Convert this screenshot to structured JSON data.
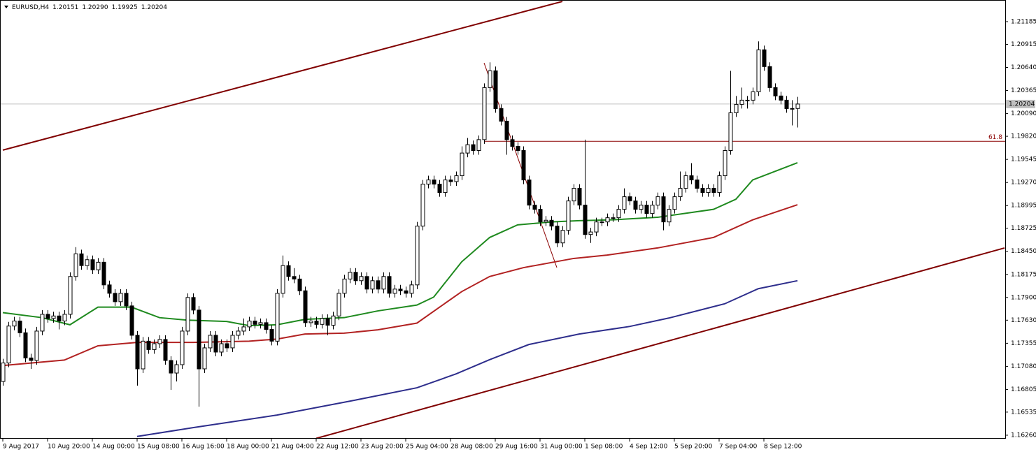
{
  "chart_data": {
    "type": "candlestick",
    "symbol": "EURUSD,H4",
    "header_ohlc": [
      "1.20151",
      "1.20290",
      "1.19925",
      "1.20204"
    ],
    "candle_colors": {
      "up": "#ffffff",
      "down": "#000000"
    },
    "candles": [
      [
        1.169,
        1.1717,
        1.1685,
        1.1712
      ],
      [
        1.1712,
        1.1761,
        1.1707,
        1.1756
      ],
      [
        1.1756,
        1.1767,
        1.1751,
        1.1762
      ],
      [
        1.1762,
        1.1767,
        1.1743,
        1.1748
      ],
      [
        1.1748,
        1.1753,
        1.1713,
        1.1718
      ],
      [
        1.1718,
        1.1723,
        1.1705,
        1.1715
      ],
      [
        1.1715,
        1.1755,
        1.171,
        1.175
      ],
      [
        1.175,
        1.1775,
        1.1745,
        1.177
      ],
      [
        1.177,
        1.1775,
        1.176,
        1.1765
      ],
      [
        1.1765,
        1.1773,
        1.176,
        1.1768
      ],
      [
        1.1768,
        1.1773,
        1.1752,
        1.1762
      ],
      [
        1.1762,
        1.1775,
        1.1757,
        1.177
      ],
      [
        1.177,
        1.182,
        1.1765,
        1.1815
      ],
      [
        1.1815,
        1.185,
        1.181,
        1.1842
      ],
      [
        1.1842,
        1.1847,
        1.1823,
        1.1828
      ],
      [
        1.1828,
        1.184,
        1.1823,
        1.1835
      ],
      [
        1.1835,
        1.184,
        1.1818,
        1.1823
      ],
      [
        1.1823,
        1.1837,
        1.1818,
        1.1832
      ],
      [
        1.1832,
        1.1837,
        1.18,
        1.1805
      ],
      [
        1.1805,
        1.181,
        1.179,
        1.1795
      ],
      [
        1.1795,
        1.18,
        1.178,
        1.1785
      ],
      [
        1.1785,
        1.18,
        1.178,
        1.1795
      ],
      [
        1.1795,
        1.18,
        1.1775,
        1.178
      ],
      [
        1.178,
        1.1785,
        1.174,
        1.1745
      ],
      [
        1.1745,
        1.175,
        1.1685,
        1.1705
      ],
      [
        1.1705,
        1.1743,
        1.17,
        1.1738
      ],
      [
        1.1738,
        1.1743,
        1.1723,
        1.1728
      ],
      [
        1.1728,
        1.174,
        1.1723,
        1.1735
      ],
      [
        1.1735,
        1.1745,
        1.173,
        1.174
      ],
      [
        1.174,
        1.1745,
        1.171,
        1.1715
      ],
      [
        1.1715,
        1.172,
        1.168,
        1.17
      ],
      [
        1.17,
        1.1715,
        1.169,
        1.171
      ],
      [
        1.171,
        1.1755,
        1.1705,
        1.175
      ],
      [
        1.175,
        1.1795,
        1.1745,
        1.179
      ],
      [
        1.179,
        1.1795,
        1.177,
        1.1775
      ],
      [
        1.1775,
        1.178,
        1.166,
        1.1705
      ],
      [
        1.1705,
        1.1735,
        1.17,
        1.173
      ],
      [
        1.173,
        1.175,
        1.1725,
        1.1745
      ],
      [
        1.1745,
        1.175,
        1.172,
        1.1725
      ],
      [
        1.1725,
        1.174,
        1.172,
        1.1735
      ],
      [
        1.1735,
        1.174,
        1.1725,
        1.173
      ],
      [
        1.173,
        1.175,
        1.1725,
        1.1745
      ],
      [
        1.1745,
        1.1755,
        1.174,
        1.175
      ],
      [
        1.175,
        1.1765,
        1.1745,
        1.1755
      ],
      [
        1.1755,
        1.1767,
        1.175,
        1.1762
      ],
      [
        1.1762,
        1.1767,
        1.1753,
        1.1758
      ],
      [
        1.1758,
        1.1765,
        1.1753,
        1.176
      ],
      [
        1.176,
        1.1765,
        1.1747,
        1.1752
      ],
      [
        1.1752,
        1.1757,
        1.1733,
        1.1738
      ],
      [
        1.1738,
        1.18,
        1.1733,
        1.1795
      ],
      [
        1.1795,
        1.184,
        1.179,
        1.1828
      ],
      [
        1.1828,
        1.1833,
        1.181,
        1.1815
      ],
      [
        1.1815,
        1.1825,
        1.1807,
        1.1812
      ],
      [
        1.1812,
        1.1817,
        1.1793,
        1.1798
      ],
      [
        1.1798,
        1.1803,
        1.1755,
        1.176
      ],
      [
        1.176,
        1.1767,
        1.1755,
        1.1762
      ],
      [
        1.1762,
        1.1767,
        1.1753,
        1.1758
      ],
      [
        1.1758,
        1.177,
        1.1753,
        1.1765
      ],
      [
        1.1765,
        1.177,
        1.1745,
        1.1757
      ],
      [
        1.1757,
        1.1773,
        1.1752,
        1.1768
      ],
      [
        1.1768,
        1.18,
        1.1763,
        1.1795
      ],
      [
        1.1795,
        1.1817,
        1.179,
        1.1812
      ],
      [
        1.1812,
        1.1825,
        1.1807,
        1.182
      ],
      [
        1.182,
        1.1825,
        1.1805,
        1.181
      ],
      [
        1.181,
        1.182,
        1.1805,
        1.1815
      ],
      [
        1.1815,
        1.182,
        1.1795,
        1.18
      ],
      [
        1.18,
        1.1815,
        1.1795,
        1.181
      ],
      [
        1.181,
        1.1815,
        1.1795,
        1.18
      ],
      [
        1.18,
        1.182,
        1.1795,
        1.1815
      ],
      [
        1.1815,
        1.182,
        1.179,
        1.1795
      ],
      [
        1.1795,
        1.1805,
        1.179,
        1.18
      ],
      [
        1.18,
        1.1805,
        1.1793,
        1.1798
      ],
      [
        1.1798,
        1.1803,
        1.179,
        1.1795
      ],
      [
        1.1795,
        1.181,
        1.179,
        1.1805
      ],
      [
        1.1805,
        1.188,
        1.18,
        1.1875
      ],
      [
        1.1875,
        1.193,
        1.187,
        1.1925
      ],
      [
        1.1925,
        1.1935,
        1.192,
        1.193
      ],
      [
        1.193,
        1.1935,
        1.192,
        1.1925
      ],
      [
        1.1925,
        1.193,
        1.191,
        1.1915
      ],
      [
        1.1915,
        1.1935,
        1.191,
        1.193
      ],
      [
        1.193,
        1.1935,
        1.1923,
        1.1928
      ],
      [
        1.1928,
        1.194,
        1.1923,
        1.1935
      ],
      [
        1.1935,
        1.197,
        1.193,
        1.1962
      ],
      [
        1.1962,
        1.198,
        1.1957,
        1.1972
      ],
      [
        1.1972,
        1.1977,
        1.196,
        1.1965
      ],
      [
        1.1965,
        1.1983,
        1.196,
        1.1978
      ],
      [
        1.1978,
        1.2045,
        1.1973,
        1.204
      ],
      [
        1.204,
        1.207,
        1.2035,
        1.206
      ],
      [
        1.206,
        1.2065,
        1.201,
        1.2015
      ],
      [
        1.2015,
        1.202,
        1.1995,
        1.2
      ],
      [
        1.2,
        1.2005,
        1.196,
        1.1978
      ],
      [
        1.1978,
        1.1983,
        1.1965,
        1.197
      ],
      [
        1.197,
        1.1975,
        1.196,
        1.1965
      ],
      [
        1.1965,
        1.197,
        1.1925,
        1.193
      ],
      [
        1.193,
        1.1935,
        1.1895,
        1.19
      ],
      [
        1.19,
        1.1905,
        1.189,
        1.1895
      ],
      [
        1.1895,
        1.19,
        1.1875,
        1.188
      ],
      [
        1.188,
        1.1887,
        1.1875,
        1.1882
      ],
      [
        1.1882,
        1.1887,
        1.187,
        1.1875
      ],
      [
        1.1875,
        1.188,
        1.185,
        1.1855
      ],
      [
        1.1855,
        1.1875,
        1.185,
        1.187
      ],
      [
        1.187,
        1.191,
        1.1865,
        1.1905
      ],
      [
        1.1905,
        1.1925,
        1.19,
        1.192
      ],
      [
        1.192,
        1.1925,
        1.1895,
        1.19
      ],
      [
        1.19,
        1.1978,
        1.186,
        1.1865
      ],
      [
        1.1865,
        1.1873,
        1.1855,
        1.1868
      ],
      [
        1.1868,
        1.1885,
        1.1863,
        1.188
      ],
      [
        1.188,
        1.1885,
        1.1875,
        1.188
      ],
      [
        1.188,
        1.189,
        1.1875,
        1.1885
      ],
      [
        1.1885,
        1.189,
        1.188,
        1.1885
      ],
      [
        1.1885,
        1.19,
        1.188,
        1.1895
      ],
      [
        1.1895,
        1.192,
        1.189,
        1.191
      ],
      [
        1.191,
        1.1915,
        1.19,
        1.1905
      ],
      [
        1.1905,
        1.191,
        1.189,
        1.1895
      ],
      [
        1.1895,
        1.1905,
        1.189,
        1.19
      ],
      [
        1.19,
        1.1905,
        1.1885,
        1.189
      ],
      [
        1.189,
        1.1905,
        1.1885,
        1.19
      ],
      [
        1.19,
        1.1915,
        1.1895,
        1.191
      ],
      [
        1.191,
        1.1915,
        1.187,
        1.188
      ],
      [
        1.188,
        1.19,
        1.1875,
        1.1895
      ],
      [
        1.1895,
        1.1915,
        1.189,
        1.191
      ],
      [
        1.191,
        1.194,
        1.1905,
        1.192
      ],
      [
        1.192,
        1.194,
        1.1915,
        1.1935
      ],
      [
        1.1935,
        1.195,
        1.1925,
        1.193
      ],
      [
        1.193,
        1.1935,
        1.1915,
        1.192
      ],
      [
        1.192,
        1.1925,
        1.191,
        1.1915
      ],
      [
        1.1915,
        1.1925,
        1.191,
        1.192
      ],
      [
        1.192,
        1.1925,
        1.191,
        1.1915
      ],
      [
        1.1915,
        1.194,
        1.191,
        1.1935
      ],
      [
        1.1935,
        1.197,
        1.193,
        1.1965
      ],
      [
        1.1965,
        1.206,
        1.196,
        1.201
      ],
      [
        1.201,
        1.203,
        1.2005,
        1.202
      ],
      [
        1.202,
        1.204,
        1.2015,
        1.2025
      ],
      [
        1.2025,
        1.203,
        1.2015,
        1.2025
      ],
      [
        1.2025,
        1.204,
        1.202,
        1.2035
      ],
      [
        1.2035,
        1.2095,
        1.203,
        1.2085
      ],
      [
        1.2085,
        1.209,
        1.206,
        1.2065
      ],
      [
        1.2065,
        1.207,
        1.2035,
        1.204
      ],
      [
        1.204,
        1.2045,
        1.2025,
        1.203
      ],
      [
        1.203,
        1.2035,
        1.202,
        1.2025
      ],
      [
        1.2025,
        1.203,
        1.201,
        1.2015
      ],
      [
        1.2015,
        1.2025,
        1.1995,
        1.20151
      ],
      [
        1.20151,
        1.2029,
        1.19925,
        1.20204
      ]
    ],
    "lines": [
      {
        "color": "#1f8a1f",
        "x": [
          0,
          7,
          12,
          17,
          23,
          28,
          33,
          40,
          44,
          49,
          54,
          61,
          67,
          74,
          77,
          82,
          87,
          92,
          98,
          103,
          109,
          117,
          127,
          131,
          134,
          142
        ],
        "values": [
          1.1772,
          1.1766,
          1.17575,
          1.17785,
          1.17785,
          1.1766,
          1.1763,
          1.17615,
          1.17565,
          1.17575,
          1.1764,
          1.1766,
          1.1774,
          1.1781,
          1.17905,
          1.18325,
          1.18615,
          1.18765,
          1.188,
          1.18815,
          1.18825,
          1.18855,
          1.1895,
          1.1907,
          1.193,
          1.19505
        ]
      },
      {
        "color": "#b22222",
        "x": [
          0,
          11,
          17,
          24,
          34,
          44,
          49,
          54,
          61,
          67,
          74,
          82,
          87,
          93,
          102,
          108,
          117,
          127,
          134,
          142
        ],
        "values": [
          1.1709,
          1.17155,
          1.17325,
          1.17365,
          1.17365,
          1.1738,
          1.17405,
          1.17465,
          1.17475,
          1.17515,
          1.17595,
          1.1797,
          1.1815,
          1.18255,
          1.18365,
          1.18405,
          1.1849,
          1.18615,
          1.18825,
          1.19005
        ]
      },
      {
        "color": "#2e2e8c",
        "x": [
          24,
          34,
          49,
          62,
          74,
          81,
          87,
          94,
          103,
          112,
          119,
          129,
          135,
          142
        ],
        "values": [
          1.16245,
          1.1635,
          1.165,
          1.16665,
          1.16825,
          1.1699,
          1.1716,
          1.1734,
          1.17465,
          1.17555,
          1.17655,
          1.17825,
          1.18005,
          1.181
        ]
      }
    ],
    "trendlines": [
      {
        "color": "#800000",
        "x": [
          0,
          100
        ],
        "values": [
          1.19655,
          1.21426
        ]
      },
      {
        "color": "#800000",
        "x": [
          56,
          179
        ],
        "values": [
          1.16222,
          1.1849
        ]
      }
    ],
    "fib_line": {
      "color": "#8b0000",
      "x": [
        86,
        99
      ],
      "values": [
        1.20694,
        1.18257
      ]
    },
    "fib_level": {
      "value": 1.1976,
      "label": "61.8"
    },
    "current_price": {
      "value": 1.20204,
      "label": "1.20204"
    },
    "xlim": [
      -0.5,
      179.125
    ],
    "ylim": [
      1.16218,
      1.21443
    ],
    "xticks": [
      {
        "value": 0,
        "label": "9 Aug 2017"
      },
      {
        "value": 8,
        "label": "10 Aug 20:00"
      },
      {
        "value": 16,
        "label": "14 Aug 00:00"
      },
      {
        "value": 24,
        "label": "15 Aug 08:00"
      },
      {
        "value": 32,
        "label": "16 Aug 16:00"
      },
      {
        "value": 40,
        "label": "18 Aug 00:00"
      },
      {
        "value": 48,
        "label": "21 Aug 04:00"
      },
      {
        "value": 56,
        "label": "22 Aug 12:00"
      },
      {
        "value": 64,
        "label": "23 Aug 20:00"
      },
      {
        "value": 72,
        "label": "25 Aug 04:00"
      },
      {
        "value": 80,
        "label": "28 Aug 08:00"
      },
      {
        "value": 88,
        "label": "29 Aug 16:00"
      },
      {
        "value": 96,
        "label": "31 Aug 00:00"
      },
      {
        "value": 104,
        "label": "1 Sep 08:00"
      },
      {
        "value": 112,
        "label": "4 Sep 12:00"
      },
      {
        "value": 120,
        "label": "5 Sep 20:00"
      },
      {
        "value": 128,
        "label": "7 Sep 04:00"
      },
      {
        "value": 136,
        "label": "8 Sep 12:00"
      }
    ],
    "yticks": [
      1.21185,
      1.20915,
      {
        "value": 1.2064,
        "label": "1.20640"
      },
      1.20365,
      {
        "value": 1.2009,
        "label": "1.20090"
      },
      {
        "value": 1.1982,
        "label": "1.19820"
      },
      1.19545,
      {
        "value": 1.1927,
        "label": "1.19270"
      },
      1.18995,
      1.18725,
      {
        "value": 1.1845,
        "label": "1.18450"
      },
      1.18175,
      {
        "value": 1.179,
        "label": "1.17900"
      },
      {
        "value": 1.1763,
        "label": "1.17630"
      },
      1.17355,
      {
        "value": 1.1708,
        "label": "1.17080"
      },
      1.16805,
      1.16535,
      {
        "value": 1.1626,
        "label": "1.16260"
      }
    ]
  }
}
